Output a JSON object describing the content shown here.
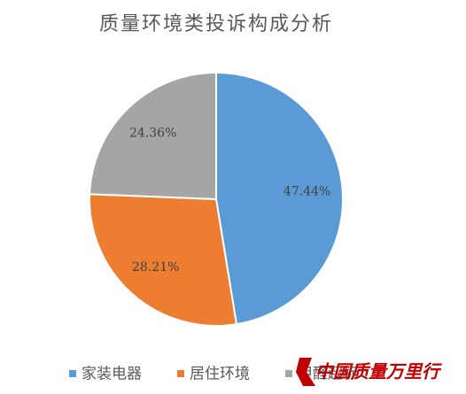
{
  "chart_data": {
    "type": "pie",
    "title": "质量环境类投诉构成分析",
    "categories": [
      "家装电器",
      "居住环境",
      "甲醛超标"
    ],
    "values": [
      47.44,
      28.21,
      24.36
    ],
    "value_labels": [
      "47.44%",
      "28.21%",
      "24.36%"
    ],
    "colors": [
      "#5b9bd5",
      "#ed7d31",
      "#a5a5a5"
    ],
    "legend": "bottom"
  },
  "watermark": "中国质量万里行"
}
